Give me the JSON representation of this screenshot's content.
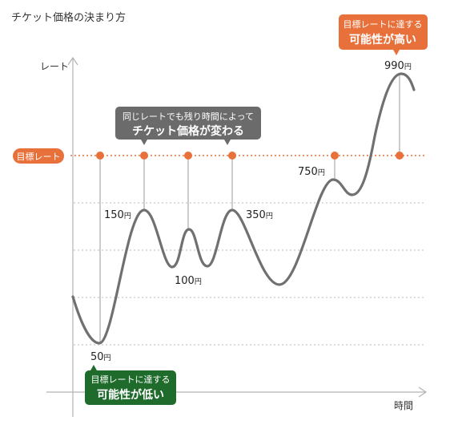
{
  "title": "チケット価格の決まり方",
  "axis": {
    "y_label": "レート",
    "x_label": "時間"
  },
  "target_rate": {
    "label": "目標レート"
  },
  "callouts": {
    "same_rate": {
      "line1": "同じレートでも残り時間によって",
      "line2": "チケット価格が変わる"
    },
    "high": {
      "line1": "目標レートに達する",
      "line2": "可能性が高い"
    },
    "low": {
      "line1": "目標レートに達する",
      "line2": "可能性が低い"
    }
  },
  "prices": {
    "p50": {
      "value": "50",
      "unit": "円"
    },
    "p150": {
      "value": "150",
      "unit": "円"
    },
    "p100": {
      "value": "100",
      "unit": "円"
    },
    "p350": {
      "value": "350",
      "unit": "円"
    },
    "p750": {
      "value": "750",
      "unit": "円"
    },
    "p990": {
      "value": "990",
      "unit": "円"
    }
  },
  "colors": {
    "orange": "#e8703a",
    "green": "#1f6b2c",
    "callout_gray": "#6b6b6b",
    "curve": "#707070",
    "axis": "#b4b4b4",
    "grid": "#c8c8c8"
  }
}
